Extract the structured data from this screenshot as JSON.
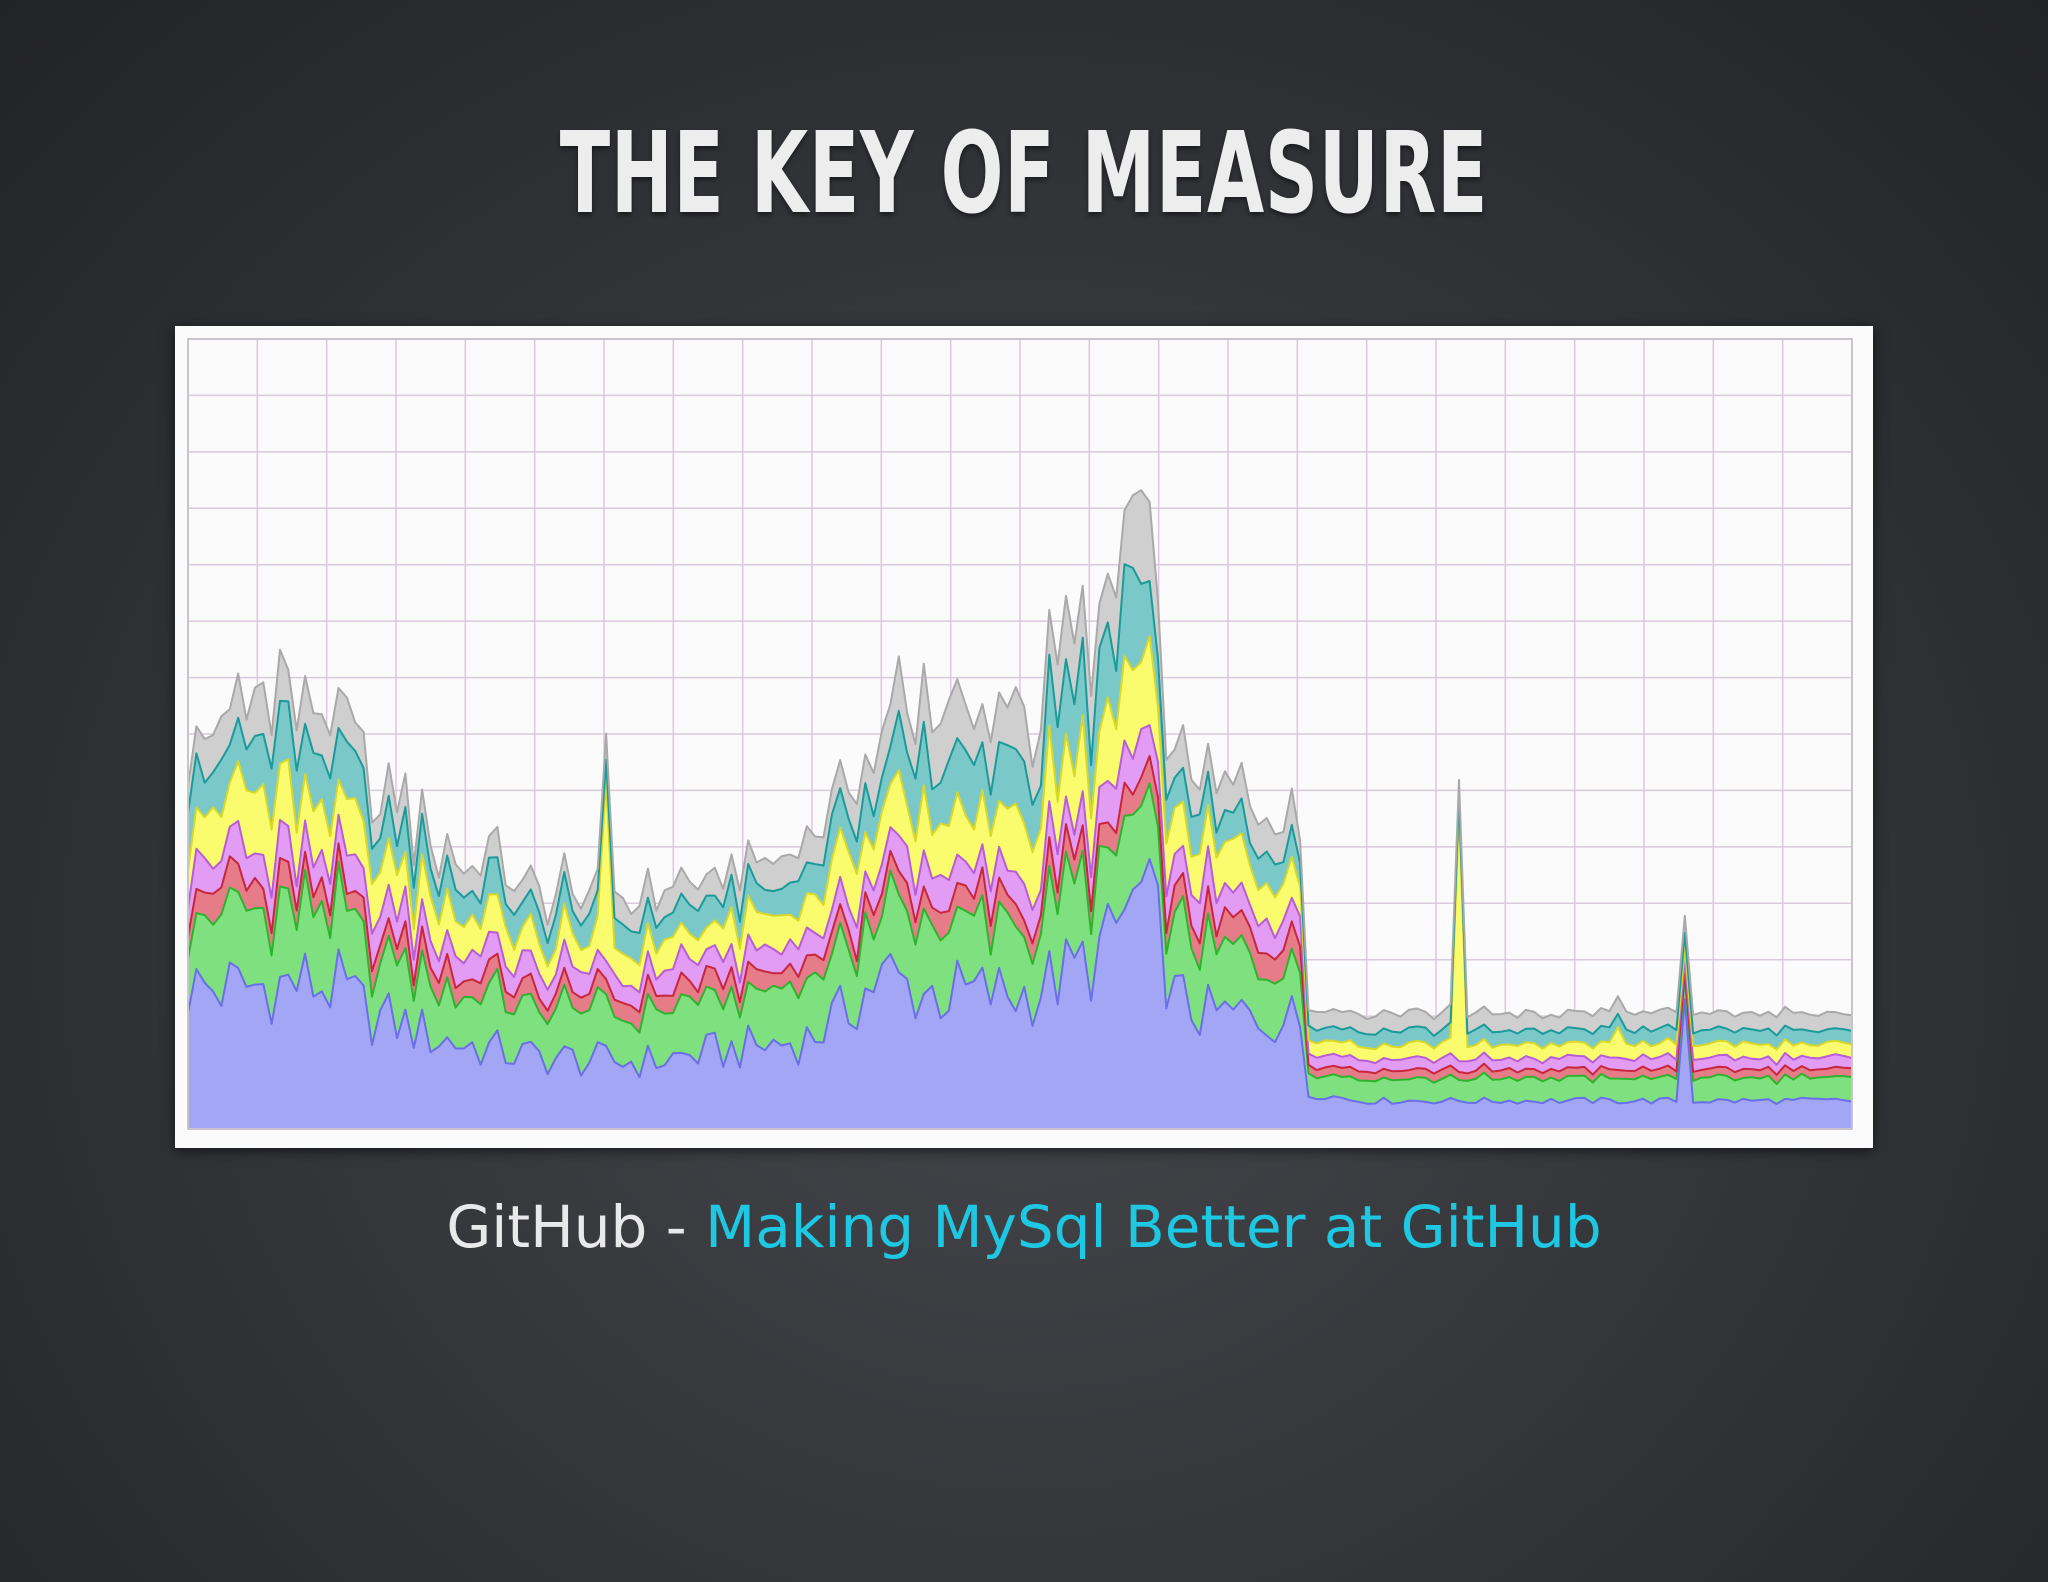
{
  "slide": {
    "title": "THE KEY OF MEASURE",
    "caption_prefix": "GitHub - ",
    "caption_link": "Making MySql Better at GitHub"
  },
  "colors": {
    "background": "#2e2f33",
    "title": "#ededee",
    "caption_link": "#1ec8e2",
    "grid": "#d9c9dc"
  },
  "chart_data": {
    "type": "area",
    "stacked": true,
    "grid": true,
    "ylim": [
      0,
      14
    ],
    "x_count": 200,
    "series": [
      {
        "color": "#a3a6f5",
        "stroke": "#6a6ee8",
        "keys": [
          [
            0,
            2.5
          ],
          [
            6,
            2.5
          ],
          [
            14,
            2.6
          ],
          [
            18,
            2.5
          ],
          [
            22,
            2.0
          ],
          [
            25,
            1.9
          ],
          [
            30,
            1.6
          ],
          [
            40,
            1.3
          ],
          [
            50,
            1.2
          ],
          [
            55,
            1.2
          ],
          [
            60,
            1.3
          ],
          [
            70,
            1.5
          ],
          [
            74,
            1.6
          ],
          [
            78,
            2.0
          ],
          [
            82,
            2.6
          ],
          [
            84,
            2.7
          ],
          [
            86,
            2.5
          ],
          [
            90,
            2.4
          ],
          [
            100,
            2.4
          ],
          [
            106,
            2.8
          ],
          [
            110,
            3.2
          ],
          [
            112,
            3.8
          ],
          [
            114,
            4.1
          ],
          [
            116,
            3.5
          ],
          [
            118,
            2.3
          ],
          [
            122,
            2.0
          ],
          [
            130,
            2.0
          ],
          [
            133,
            1.9
          ],
          [
            134,
            0.6
          ],
          [
            136,
            0.6
          ],
          [
            140,
            0.5
          ],
          [
            160,
            0.5
          ],
          [
            180,
            0.5
          ],
          [
            200,
            0.5
          ]
        ]
      },
      {
        "color": "#7fe07f",
        "stroke": "#2fb32f",
        "keys": [
          [
            0,
            1.3
          ],
          [
            6,
            1.3
          ],
          [
            14,
            1.3
          ],
          [
            18,
            1.25
          ],
          [
            22,
            1.1
          ],
          [
            30,
            1.0
          ],
          [
            40,
            0.9
          ],
          [
            50,
            0.85
          ],
          [
            60,
            0.85
          ],
          [
            70,
            0.9
          ],
          [
            80,
            1.1
          ],
          [
            86,
            1.2
          ],
          [
            90,
            1.2
          ],
          [
            100,
            1.2
          ],
          [
            108,
            1.3
          ],
          [
            112,
            1.4
          ],
          [
            114,
            1.5
          ],
          [
            116,
            1.3
          ],
          [
            122,
            1.1
          ],
          [
            130,
            1.1
          ],
          [
            133,
            1.1
          ],
          [
            134,
            0.4
          ],
          [
            140,
            0.4
          ],
          [
            160,
            0.4
          ],
          [
            200,
            0.4
          ]
        ]
      },
      {
        "color": "#e67c88",
        "stroke": "#c8263c",
        "keys": [
          [
            0,
            0.45
          ],
          [
            10,
            0.45
          ],
          [
            20,
            0.4
          ],
          [
            30,
            0.35
          ],
          [
            50,
            0.3
          ],
          [
            70,
            0.3
          ],
          [
            86,
            0.4
          ],
          [
            100,
            0.4
          ],
          [
            110,
            0.45
          ],
          [
            114,
            0.5
          ],
          [
            118,
            0.45
          ],
          [
            130,
            0.4
          ],
          [
            133,
            0.4
          ],
          [
            134,
            0.15
          ],
          [
            200,
            0.15
          ]
        ]
      },
      {
        "color": "#e29cf4",
        "stroke": "#b85dd5",
        "keys": [
          [
            0,
            0.6
          ],
          [
            10,
            0.6
          ],
          [
            20,
            0.55
          ],
          [
            30,
            0.45
          ],
          [
            50,
            0.4
          ],
          [
            70,
            0.4
          ],
          [
            86,
            0.55
          ],
          [
            100,
            0.55
          ],
          [
            110,
            0.6
          ],
          [
            114,
            0.7
          ],
          [
            118,
            0.6
          ],
          [
            130,
            0.5
          ],
          [
            133,
            0.5
          ],
          [
            134,
            0.2
          ],
          [
            200,
            0.2
          ]
        ]
      },
      {
        "color": "#fbfb6e",
        "stroke": "#d8d82a",
        "keys": [
          [
            0,
            0.9
          ],
          [
            10,
            1.0
          ],
          [
            20,
            0.8
          ],
          [
            30,
            0.6
          ],
          [
            50,
            0.5
          ],
          [
            70,
            0.55
          ],
          [
            86,
            0.95
          ],
          [
            100,
            1.0
          ],
          [
            110,
            1.3
          ],
          [
            114,
            1.5
          ],
          [
            118,
            0.9
          ],
          [
            130,
            0.7
          ],
          [
            133,
            0.7
          ],
          [
            134,
            0.25
          ],
          [
            200,
            0.25
          ]
        ]
      },
      {
        "color": "#7ac8c8",
        "stroke": "#1b9a9a",
        "keys": [
          [
            0,
            0.8
          ],
          [
            10,
            0.95
          ],
          [
            20,
            0.8
          ],
          [
            30,
            0.55
          ],
          [
            50,
            0.45
          ],
          [
            70,
            0.5
          ],
          [
            86,
            0.9
          ],
          [
            100,
            0.95
          ],
          [
            110,
            1.3
          ],
          [
            114,
            1.6
          ],
          [
            118,
            0.6
          ],
          [
            130,
            0.5
          ],
          [
            133,
            0.5
          ],
          [
            134,
            0.25
          ],
          [
            200,
            0.25
          ]
        ]
      },
      {
        "color": "#cfcfcf",
        "stroke": "#a9a9a9",
        "keys": [
          [
            0,
            0.6
          ],
          [
            10,
            0.75
          ],
          [
            20,
            0.6
          ],
          [
            30,
            0.45
          ],
          [
            50,
            0.4
          ],
          [
            70,
            0.45
          ],
          [
            86,
            0.8
          ],
          [
            100,
            0.9
          ],
          [
            110,
            1.1
          ],
          [
            114,
            1.3
          ],
          [
            118,
            0.6
          ],
          [
            130,
            0.55
          ],
          [
            133,
            0.55
          ],
          [
            134,
            0.3
          ],
          [
            200,
            0.3
          ]
        ]
      }
    ],
    "spikes": [
      {
        "x": 50,
        "series": 4,
        "add": 2.6
      },
      {
        "x": 152,
        "series": 4,
        "add": 4.2
      },
      {
        "x": 171,
        "series": 4,
        "add": 0.3
      },
      {
        "x": 179,
        "series": 0,
        "add": 1.8
      }
    ]
  }
}
